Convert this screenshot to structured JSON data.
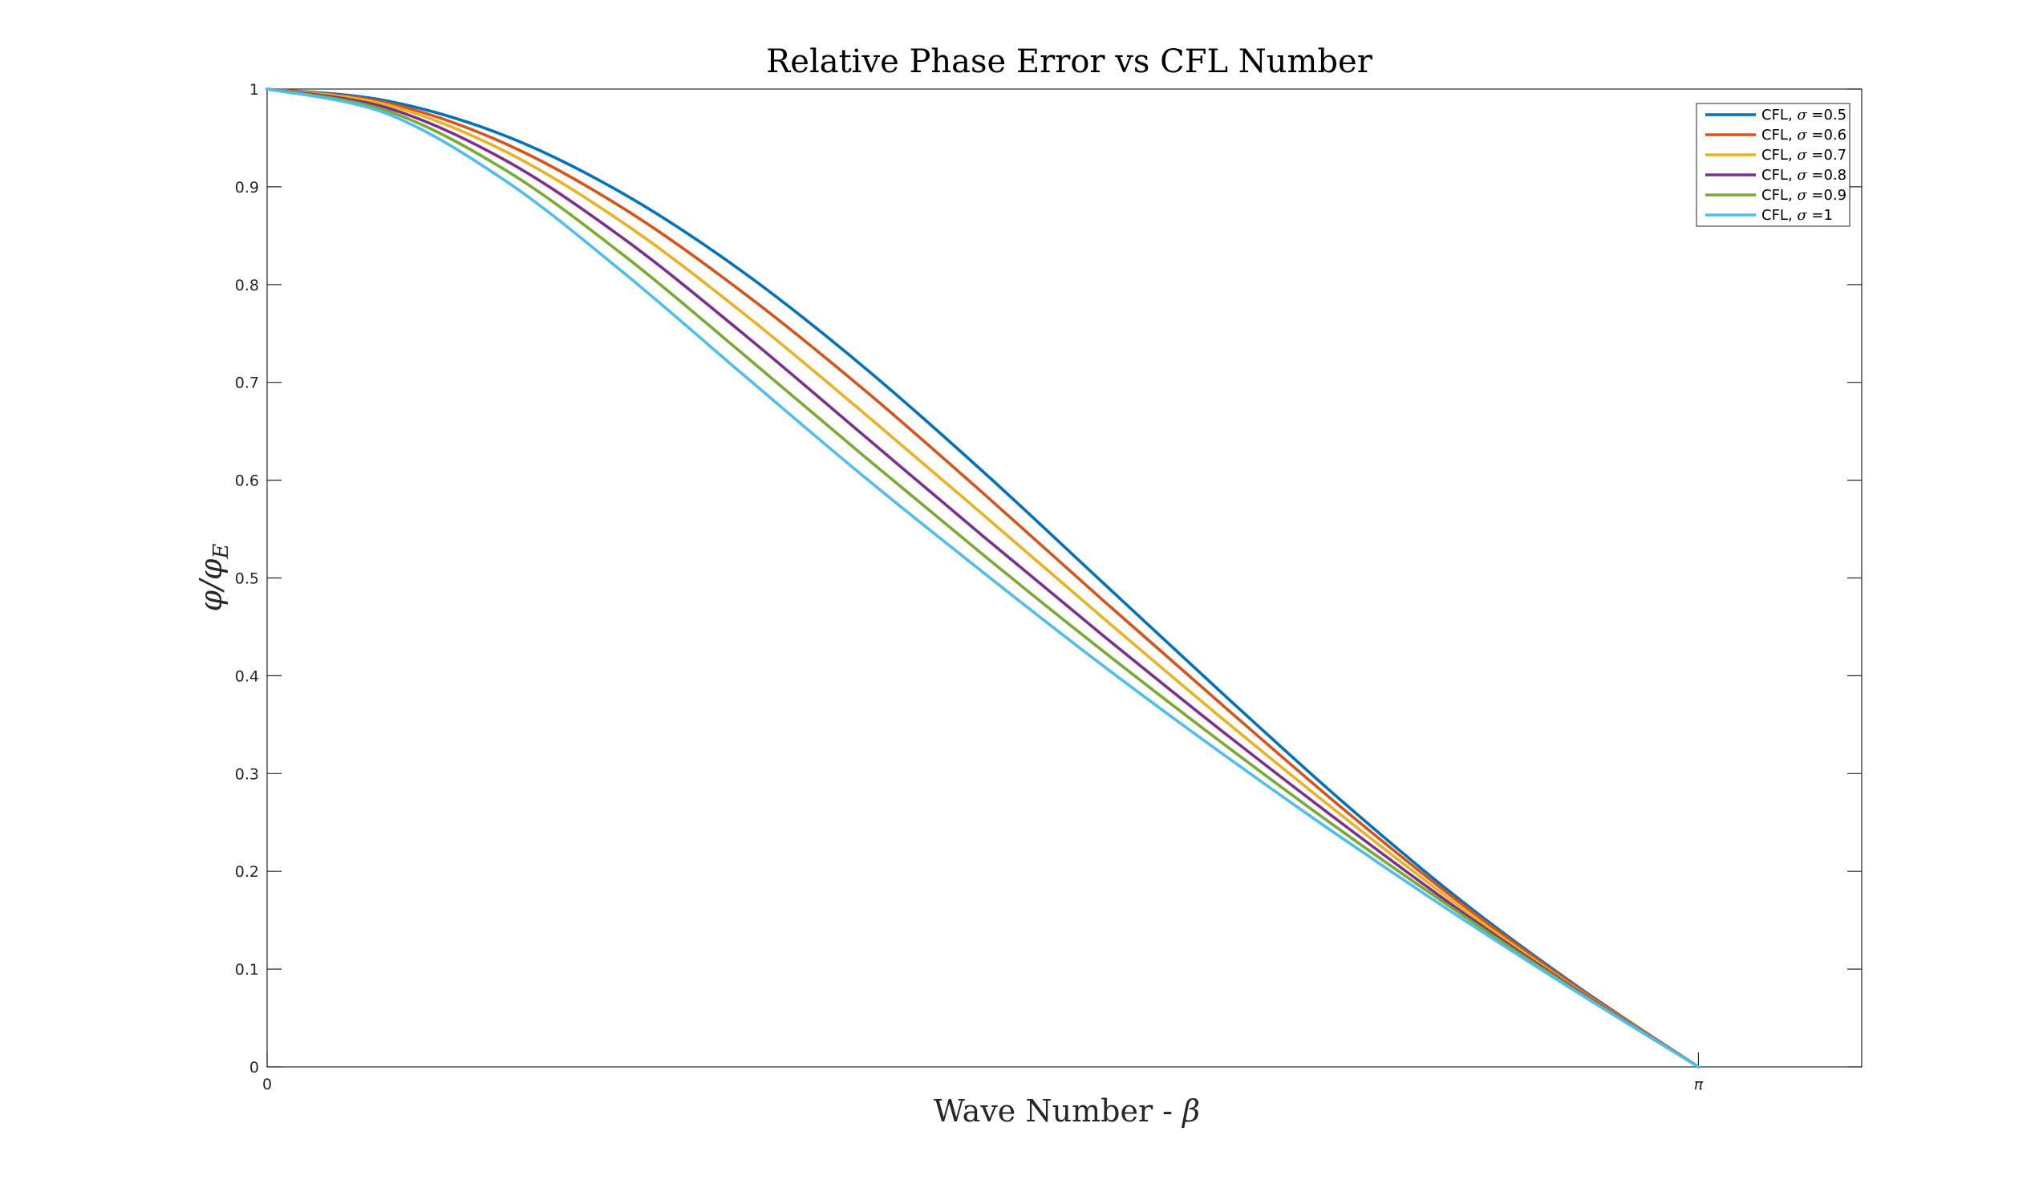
{
  "chart_data": {
    "type": "line",
    "title": "Relative Phase Error vs CFL Number",
    "xlabel": {
      "text": "Wave Number - ",
      "symbol": "β"
    },
    "ylabel": {
      "main": "φ/φ",
      "sub": "E"
    },
    "xlim": [
      0,
      3.5
    ],
    "ylim": [
      0,
      1
    ],
    "xticks": [
      {
        "value": 0,
        "label": "0"
      },
      {
        "value": 3.14159,
        "label": "π"
      }
    ],
    "yticks": [
      {
        "value": 0,
        "label": "0"
      },
      {
        "value": 0.1,
        "label": "0.1"
      },
      {
        "value": 0.2,
        "label": "0.2"
      },
      {
        "value": 0.3,
        "label": "0.3"
      },
      {
        "value": 0.4,
        "label": "0.4"
      },
      {
        "value": 0.5,
        "label": "0.5"
      },
      {
        "value": 0.6,
        "label": "0.6"
      },
      {
        "value": 0.7,
        "label": "0.7"
      },
      {
        "value": 0.8,
        "label": "0.8"
      },
      {
        "value": 0.9,
        "label": "0.9"
      },
      {
        "value": 1,
        "label": "1"
      }
    ],
    "grid": false,
    "legend_position": "top-right",
    "x": [
      0,
      0.2618,
      0.5236,
      0.7854,
      1.0472,
      1.309,
      1.5708,
      1.8326,
      2.0944,
      2.3562,
      2.618,
      2.8798,
      3.1416
    ],
    "series": [
      {
        "name_prefix": "CFL, ",
        "symbol": "σ",
        "name_suffix": " =0.5",
        "color": "#0072BD",
        "values": [
          1,
          0.988,
          0.952,
          0.892,
          0.812,
          0.716,
          0.609,
          0.496,
          0.383,
          0.273,
          0.171,
          0.081,
          0
        ]
      },
      {
        "name_prefix": "CFL, ",
        "symbol": "σ",
        "name_suffix": " =0.6",
        "color": "#D95319",
        "values": [
          1,
          0.986,
          0.944,
          0.877,
          0.791,
          0.693,
          0.587,
          0.478,
          0.371,
          0.266,
          0.168,
          0.08,
          0
        ]
      },
      {
        "name_prefix": "CFL, ",
        "symbol": "σ",
        "name_suffix": " =0.7",
        "color": "#EDB120",
        "values": [
          1,
          0.984,
          0.936,
          0.862,
          0.77,
          0.669,
          0.565,
          0.46,
          0.357,
          0.258,
          0.164,
          0.078,
          0
        ]
      },
      {
        "name_prefix": "CFL, ",
        "symbol": "σ",
        "name_suffix": " =0.8",
        "color": "#7E2F8E",
        "values": [
          1,
          0.981,
          0.927,
          0.846,
          0.749,
          0.646,
          0.543,
          0.442,
          0.344,
          0.25,
          0.16,
          0.077,
          0
        ]
      },
      {
        "name_prefix": "CFL, ",
        "symbol": "σ",
        "name_suffix": " =0.9",
        "color": "#77AC30",
        "values": [
          1,
          0.978,
          0.917,
          0.829,
          0.728,
          0.625,
          0.524,
          0.426,
          0.332,
          0.242,
          0.157,
          0.076,
          0
        ]
      },
      {
        "name_prefix": "CFL, ",
        "symbol": "σ",
        "name_suffix": " =1",
        "color": "#4DBEEE",
        "values": [
          1,
          0.975,
          0.906,
          0.811,
          0.707,
          0.604,
          0.506,
          0.411,
          0.321,
          0.235,
          0.153,
          0.075,
          0
        ]
      }
    ]
  }
}
